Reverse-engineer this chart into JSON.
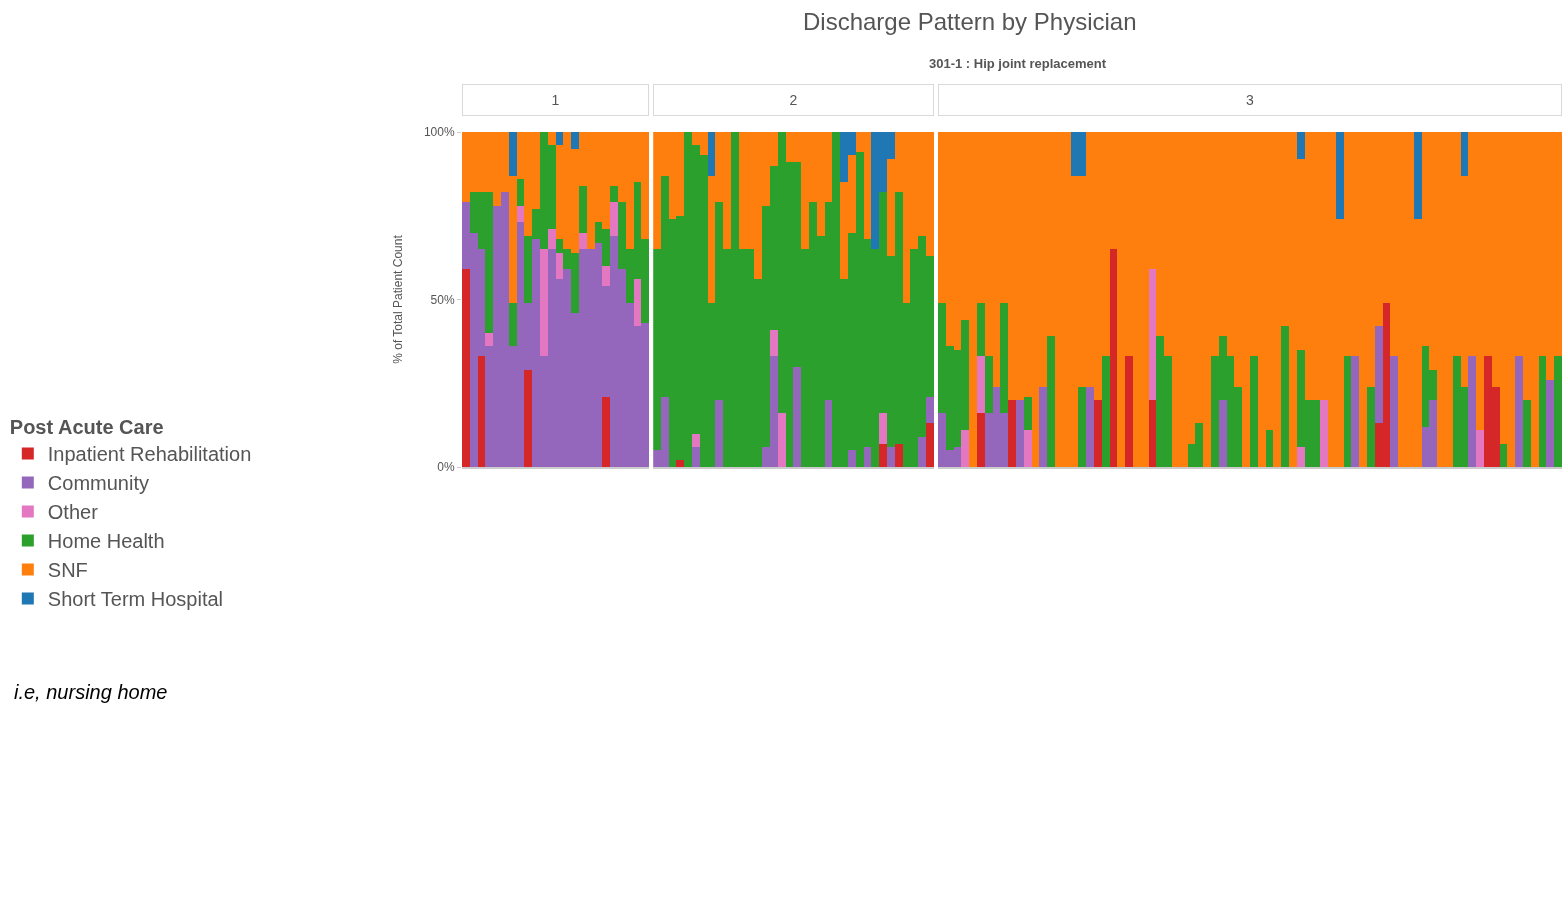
{
  "chart_data": [
    {
      "type": "bar",
      "title": "1",
      "ylabel": "% of Total Patient Count",
      "legend_title": "Post Acute Care",
      "annotations": [
        "Discharge Pattern by Physician",
        "301-1 : Hip joint replacement",
        "i.e, nursing home"
      ],
      "categories": [
        null,
        null,
        null,
        null,
        null,
        null,
        null,
        null,
        null,
        null,
        null,
        null,
        null,
        null,
        null,
        null,
        null,
        null,
        null,
        null,
        null,
        null,
        null,
        null
      ],
      "stacked": true,
      "ylim": [
        0,
        100
      ],
      "yticks": [
        {
          "value": 0,
          "label": "0%"
        },
        {
          "value": 50,
          "label": "50%"
        },
        {
          "value": 100,
          "label": "100%"
        }
      ],
      "tick_labels": "y",
      "legend": "left",
      "series": [
        {
          "name": "Inpatient Rehabilitation",
          "color": "#d62728",
          "values": [
            59,
            0,
            33,
            0,
            0,
            0,
            0,
            0,
            29,
            0,
            0,
            0,
            0,
            0,
            0,
            0,
            0,
            0,
            21,
            0,
            0,
            0,
            0,
            0
          ]
        },
        {
          "name": "Community",
          "color": "#9467bd",
          "values": [
            20,
            70,
            32,
            36,
            78,
            82,
            36,
            73,
            20,
            68,
            33,
            65,
            56,
            59,
            46,
            65,
            65,
            67,
            33,
            69,
            59,
            49,
            42,
            43
          ]
        },
        {
          "name": "Other",
          "color": "#e377c2",
          "values": [
            0,
            0,
            0,
            4,
            0,
            0,
            0,
            5,
            0,
            0,
            32,
            6,
            8,
            0,
            0,
            5,
            0,
            0,
            6,
            10,
            0,
            0,
            14,
            0
          ]
        },
        {
          "name": "Home Health",
          "color": "#2ca02c",
          "values": [
            0,
            12,
            17,
            42,
            0,
            0,
            13,
            8,
            20,
            9,
            35,
            25,
            4,
            6,
            18,
            14,
            0,
            6,
            11,
            5,
            20,
            16,
            29,
            25
          ]
        },
        {
          "name": "SNF",
          "color": "#ff7f0e",
          "values": [
            21,
            18,
            18,
            18,
            22,
            18,
            38,
            14,
            31,
            23,
            0,
            4,
            28,
            35,
            31,
            16,
            35,
            27,
            29,
            16,
            21,
            35,
            15,
            32
          ]
        },
        {
          "name": "Short Term Hospital",
          "color": "#1f77b4",
          "values": [
            0,
            0,
            0,
            0,
            0,
            0,
            13,
            0,
            0,
            0,
            0,
            0,
            4,
            0,
            5,
            0,
            0,
            0,
            0,
            0,
            0,
            0,
            0,
            0
          ]
        }
      ]
    },
    {
      "type": "bar",
      "title": "2",
      "categories": [
        null,
        null,
        null,
        null,
        null,
        null,
        null,
        null,
        null,
        null,
        null,
        null,
        null,
        null,
        null,
        null,
        null,
        null,
        null,
        null,
        null,
        null,
        null,
        null,
        null,
        null,
        null,
        null,
        null,
        null,
        null,
        null,
        null,
        null,
        null,
        null
      ],
      "stacked": true,
      "ylim": [
        0,
        100
      ],
      "tick_labels": false,
      "series": [
        {
          "color": "#d62728",
          "values": [
            0,
            0,
            0,
            2,
            0,
            0,
            0,
            0,
            0,
            0,
            0,
            0,
            0,
            0,
            0,
            0,
            0,
            0,
            0,
            0,
            0,
            0,
            0,
            0,
            0,
            0,
            0,
            0,
            0,
            7,
            0,
            7,
            0,
            0,
            0,
            13
          ]
        },
        {
          "color": "#9467bd",
          "values": [
            5,
            21,
            0,
            0,
            0,
            6,
            0,
            0,
            20,
            0,
            0,
            0,
            0,
            0,
            6,
            33,
            0,
            0,
            30,
            0,
            0,
            0,
            20,
            0,
            0,
            5,
            0,
            6,
            0,
            0,
            6,
            0,
            0,
            0,
            9,
            8
          ]
        },
        {
          "color": "#e377c2",
          "values": [
            0,
            0,
            0,
            0,
            0,
            4,
            0,
            0,
            0,
            0,
            0,
            0,
            0,
            0,
            0,
            8,
            16,
            0,
            0,
            0,
            0,
            0,
            0,
            0,
            0,
            0,
            0,
            0,
            0,
            9,
            0,
            0,
            0,
            0,
            0,
            0
          ]
        },
        {
          "color": "#2ca02c",
          "values": [
            60,
            66,
            74,
            73,
            100,
            86,
            93,
            49,
            59,
            65,
            100,
            65,
            65,
            56,
            72,
            49,
            84,
            91,
            61,
            65,
            79,
            69,
            59,
            100,
            56,
            65,
            94,
            62,
            65,
            66,
            57,
            75,
            49,
            65,
            60,
            42
          ]
        },
        {
          "color": "#ff7f0e",
          "values": [
            35,
            13,
            26,
            25,
            0,
            4,
            7,
            38,
            21,
            35,
            0,
            35,
            35,
            44,
            22,
            10,
            0,
            9,
            9,
            35,
            21,
            31,
            21,
            0,
            29,
            23,
            6,
            32,
            0,
            0,
            29,
            18,
            51,
            35,
            31,
            37
          ]
        },
        {
          "color": "#1f77b4",
          "values": [
            0,
            0,
            0,
            0,
            0,
            0,
            0,
            13,
            0,
            0,
            0,
            0,
            0,
            0,
            0,
            0,
            0,
            0,
            0,
            0,
            0,
            0,
            0,
            0,
            15,
            7,
            0,
            0,
            35,
            18,
            8,
            0,
            0,
            0,
            0,
            0
          ]
        }
      ]
    },
    {
      "type": "bar",
      "title": "3",
      "categories": [
        null,
        null,
        null,
        null,
        null,
        null,
        null,
        null,
        null,
        null,
        null,
        null,
        null,
        null,
        null,
        null,
        null,
        null,
        null,
        null,
        null,
        null,
        null,
        null,
        null,
        null,
        null,
        null,
        null,
        null,
        null,
        null,
        null,
        null,
        null,
        null,
        null,
        null,
        null,
        null,
        null,
        null,
        null,
        null,
        null,
        null,
        null,
        null,
        null,
        null,
        null,
        null,
        null,
        null,
        null,
        null,
        null,
        null,
        null,
        null,
        null,
        null,
        null,
        null,
        null,
        null,
        null,
        null,
        null,
        null,
        null,
        null,
        null,
        null,
        null,
        null,
        null,
        null,
        null,
        null
      ],
      "stacked": true,
      "ylim": [
        0,
        100
      ],
      "tick_labels": false,
      "series": [
        {
          "color": "#d62728",
          "values": [
            0,
            0,
            0,
            0,
            0,
            16,
            0,
            0,
            0,
            20,
            0,
            0,
            0,
            0,
            0,
            0,
            0,
            0,
            0,
            0,
            20,
            0,
            65,
            0,
            33,
            0,
            0,
            20,
            0,
            0,
            0,
            0,
            0,
            0,
            0,
            0,
            0,
            0,
            0,
            0,
            0,
            0,
            0,
            0,
            0,
            0,
            0,
            0,
            0,
            0,
            0,
            0,
            0,
            0,
            0,
            0,
            13,
            49,
            0,
            0,
            0,
            0,
            0,
            0,
            0,
            0,
            0,
            0,
            0,
            0,
            33,
            24,
            0,
            0,
            0,
            0,
            0,
            0,
            0,
            0
          ]
        },
        {
          "color": "#9467bd",
          "values": [
            16,
            5,
            6,
            0,
            0,
            0,
            16,
            24,
            16,
            0,
            20,
            0,
            0,
            24,
            0,
            0,
            0,
            0,
            0,
            24,
            0,
            0,
            0,
            0,
            0,
            0,
            0,
            0,
            0,
            0,
            0,
            0,
            0,
            0,
            0,
            0,
            20,
            0,
            0,
            0,
            0,
            0,
            0,
            0,
            0,
            0,
            0,
            0,
            0,
            0,
            0,
            0,
            0,
            33,
            0,
            0,
            29,
            0,
            33,
            0,
            0,
            0,
            12,
            20,
            0,
            0,
            0,
            0,
            33,
            0,
            0,
            0,
            0,
            0,
            33,
            0,
            0,
            0,
            26,
            0
          ]
        },
        {
          "color": "#e377c2",
          "values": [
            0,
            0,
            0,
            11,
            0,
            17,
            0,
            0,
            0,
            0,
            0,
            11,
            0,
            0,
            0,
            0,
            0,
            0,
            0,
            0,
            0,
            0,
            0,
            0,
            0,
            0,
            0,
            39,
            0,
            0,
            0,
            0,
            0,
            0,
            0,
            0,
            0,
            0,
            0,
            0,
            0,
            0,
            0,
            0,
            0,
            0,
            6,
            0,
            0,
            20,
            0,
            0,
            0,
            0,
            0,
            0,
            0,
            0,
            0,
            0,
            0,
            0,
            0,
            0,
            0,
            0,
            0,
            0,
            0,
            11,
            0,
            0,
            0,
            0,
            0,
            0,
            0,
            0,
            0,
            0
          ]
        },
        {
          "color": "#2ca02c",
          "values": [
            33,
            31,
            29,
            33,
            0,
            16,
            17,
            0,
            33,
            0,
            0,
            10,
            0,
            0,
            39,
            0,
            0,
            0,
            24,
            0,
            0,
            33,
            0,
            0,
            0,
            0,
            0,
            0,
            39,
            33,
            0,
            0,
            7,
            13,
            0,
            33,
            19,
            33,
            24,
            0,
            33,
            0,
            11,
            0,
            42,
            0,
            29,
            20,
            20,
            0,
            0,
            0,
            33,
            0,
            0,
            24,
            0,
            0,
            0,
            0,
            0,
            0,
            24,
            9,
            0,
            0,
            33,
            24,
            0,
            0,
            0,
            0,
            7,
            0,
            0,
            20,
            0,
            33,
            0,
            33
          ]
        },
        {
          "color": "#ff7f0e",
          "values": [
            51,
            64,
            65,
            56,
            100,
            51,
            67,
            76,
            51,
            80,
            80,
            79,
            100,
            76,
            61,
            100,
            100,
            87,
            63,
            76,
            80,
            67,
            35,
            100,
            67,
            100,
            100,
            41,
            61,
            67,
            100,
            100,
            93,
            87,
            100,
            67,
            61,
            67,
            76,
            100,
            67,
            100,
            89,
            100,
            58,
            100,
            57,
            80,
            80,
            80,
            100,
            74,
            67,
            67,
            100,
            76,
            58,
            51,
            67,
            100,
            100,
            74,
            64,
            71,
            100,
            100,
            67,
            63,
            67,
            89,
            67,
            76,
            93,
            100,
            67,
            80,
            100,
            67,
            74,
            67
          ]
        },
        {
          "color": "#1f77b4",
          "values": [
            0,
            0,
            0,
            0,
            0,
            0,
            0,
            0,
            0,
            0,
            0,
            0,
            0,
            0,
            0,
            0,
            0,
            13,
            13,
            0,
            0,
            0,
            0,
            0,
            0,
            0,
            0,
            0,
            0,
            0,
            0,
            0,
            0,
            0,
            0,
            0,
            0,
            0,
            0,
            0,
            0,
            0,
            0,
            0,
            0,
            0,
            8,
            0,
            0,
            0,
            0,
            26,
            0,
            0,
            0,
            0,
            0,
            0,
            0,
            0,
            0,
            26,
            0,
            0,
            0,
            0,
            0,
            13,
            0,
            0,
            0,
            0,
            0,
            0,
            0,
            0,
            0,
            0,
            0,
            0
          ]
        }
      ]
    }
  ]
}
